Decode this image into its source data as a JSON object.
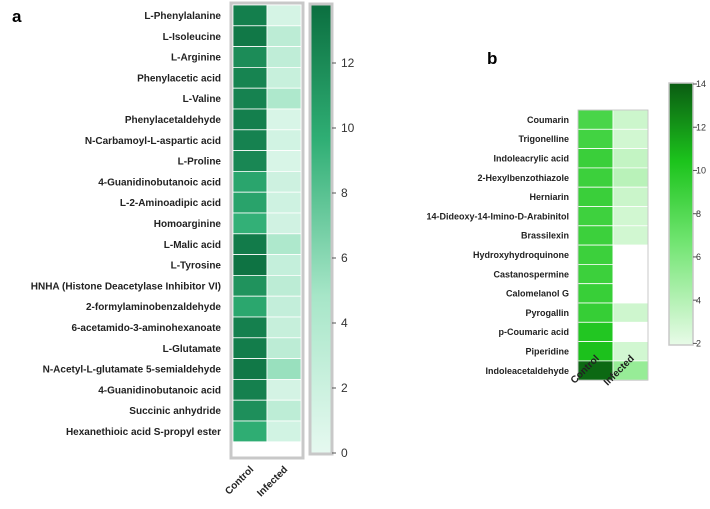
{
  "chart_data": [
    {
      "type": "heatmap",
      "panel_label": "a",
      "columns": [
        "Control",
        "Infected"
      ],
      "rows": [
        "L-Phenylalanine",
        "L-Isoleucine",
        "L-Arginine",
        "Phenylacetic acid",
        "L-Valine",
        "Phenylacetaldehyde",
        "N-Carbamoyl-L-aspartic acid",
        "L-Proline",
        "4-Guanidinobutanoic acid",
        "L-2-Aminoadipic acid",
        "Homoarginine",
        "L-Malic acid",
        "L-Tyrosine",
        "HNHA (Histone Deacetylase Inhibitor VI)",
        "2-formylaminobenzaldehyde",
        "6-acetamido-3-aminohexanoate",
        "L-Glutamate",
        "N-Acetyl-L-glutamate 5-semialdehyde",
        "4-Guanidinobutanoic acid",
        "Succinic anhydride",
        "Hexanethioic acid S-propyl ester"
      ],
      "values": [
        [
          11.8,
          1.2
        ],
        [
          12.2,
          3.0
        ],
        [
          11.0,
          2.8
        ],
        [
          11.5,
          2.2
        ],
        [
          11.6,
          4.0
        ],
        [
          11.8,
          1.0
        ],
        [
          11.6,
          1.5
        ],
        [
          11.3,
          1.0
        ],
        [
          9.5,
          1.8
        ],
        [
          9.6,
          1.7
        ],
        [
          8.8,
          1.6
        ],
        [
          12.0,
          4.0
        ],
        [
          12.5,
          2.4
        ],
        [
          10.6,
          3.0
        ],
        [
          9.4,
          2.5
        ],
        [
          11.7,
          2.3
        ],
        [
          11.9,
          3.0
        ],
        [
          12.2,
          5.0
        ],
        [
          11.7,
          1.3
        ],
        [
          10.8,
          2.9
        ],
        [
          9.0,
          1.5
        ]
      ],
      "colorbar": {
        "min": 0,
        "max": 12.8,
        "ticks": [
          0,
          2,
          4,
          6,
          8,
          10,
          12
        ],
        "color_low": "#e6f9f0",
        "color_high": "#0b6e3f"
      }
    },
    {
      "type": "heatmap",
      "panel_label": "b",
      "columns": [
        "Control",
        "Infected"
      ],
      "rows": [
        "Coumarin",
        "Trigonelline",
        "Indoleacrylic acid",
        "2-Hexylbenzothiazole",
        "Herniarin",
        "14-Dideoxy-14-Imino-D-Arabinitol",
        "Brassilexin",
        "Hydroxyhydroquinone",
        "Castanospermine",
        "Calomelanol G",
        "Pyrogallin",
        "p-Coumaric acid",
        "Piperidine",
        "Indoleacetaldehyde"
      ],
      "values": [
        [
          8.0,
          2.2
        ],
        [
          8.3,
          2.0
        ],
        [
          8.7,
          2.6
        ],
        [
          8.6,
          3.0
        ],
        [
          8.7,
          2.3
        ],
        [
          8.5,
          2.0
        ],
        [
          8.6,
          2.0
        ],
        [
          8.6,
          1.0
        ],
        [
          8.6,
          1.0
        ],
        [
          8.8,
          1.0
        ],
        [
          8.9,
          2.1
        ],
        [
          9.8,
          1.0
        ],
        [
          10.2,
          2.0
        ],
        [
          13.5,
          4.5
        ]
      ],
      "colorbar": {
        "min": 1,
        "max": 14,
        "ticks": [
          2,
          4,
          6,
          8,
          10,
          12,
          14
        ],
        "color_low": "#e8fbe8",
        "color_high": "#0a5c12"
      }
    }
  ]
}
